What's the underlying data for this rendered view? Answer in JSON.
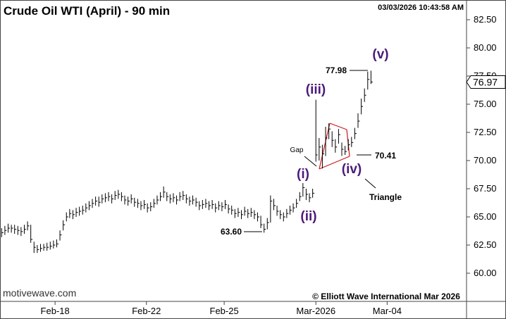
{
  "chart_data": {
    "type": "ohlc",
    "title": "Crude Oil WTI (April) - 90 min",
    "timestamp": "03/03/2026 10:43:58 AM",
    "color": "#000000",
    "high": [
      64.0,
      64.2,
      64.4,
      64.3,
      64.3,
      64.2,
      64.1,
      64.3,
      64.6,
      64.3,
      62.8,
      62.5,
      62.6,
      62.6,
      62.7,
      62.8,
      62.9,
      63.0,
      63.8,
      64.7,
      65.4,
      65.7,
      65.6,
      65.8,
      65.9,
      66.0,
      66.2,
      66.4,
      66.6,
      66.8,
      66.8,
      67.0,
      67.1,
      67.2,
      67.0,
      67.3,
      67.4,
      67.2,
      66.9,
      66.8,
      67.0,
      66.7,
      66.6,
      66.4,
      66.5,
      66.2,
      66.3,
      66.6,
      66.9,
      67.2,
      67.7,
      67.2,
      67.0,
      67.1,
      66.9,
      67.2,
      67.3,
      67.0,
      66.8,
      66.9,
      66.7,
      66.4,
      66.5,
      66.6,
      66.4,
      66.5,
      66.2,
      66.4,
      66.3,
      66.5,
      66.1,
      66.0,
      65.7,
      65.8,
      65.6,
      65.9,
      65.7,
      65.8,
      65.6,
      65.4,
      65.1,
      64.4,
      64.9,
      66.9,
      66.6,
      66.0,
      65.6,
      65.4,
      65.7,
      66.0,
      66.2,
      66.6,
      67.2,
      68.0,
      67.5,
      67.1,
      67.5,
      75.4,
      72.0,
      71.4,
      73.0,
      73.3,
      72.6,
      71.9,
      72.8,
      71.6,
      71.3,
      71.9,
      72.1,
      72.9,
      74.2,
      75.5,
      76.4,
      77.9,
      77.98
    ],
    "low": [
      63.2,
      63.4,
      63.6,
      63.6,
      63.5,
      63.4,
      63.3,
      63.5,
      63.8,
      62.7,
      61.8,
      61.8,
      61.9,
      62.0,
      62.0,
      62.1,
      62.2,
      62.3,
      62.9,
      63.8,
      64.6,
      64.9,
      64.8,
      65.0,
      65.1,
      65.2,
      65.4,
      65.6,
      65.8,
      66.0,
      65.9,
      66.2,
      66.3,
      66.4,
      66.2,
      66.5,
      66.6,
      66.4,
      66.1,
      66.0,
      66.2,
      65.9,
      65.8,
      65.6,
      65.7,
      65.4,
      65.5,
      65.8,
      66.1,
      66.4,
      66.7,
      66.4,
      66.2,
      66.3,
      66.1,
      66.4,
      66.5,
      66.2,
      66.0,
      66.1,
      65.9,
      65.6,
      65.7,
      65.8,
      65.6,
      65.7,
      65.4,
      65.6,
      65.5,
      65.7,
      65.3,
      65.2,
      64.9,
      65.0,
      64.8,
      65.1,
      64.9,
      65.0,
      64.8,
      64.6,
      64.0,
      63.6,
      63.9,
      64.5,
      65.6,
      65.1,
      64.8,
      64.6,
      64.9,
      65.2,
      65.4,
      65.8,
      66.4,
      66.8,
      66.5,
      66.3,
      66.7,
      69.9,
      70.0,
      69.3,
      70.4,
      71.9,
      71.2,
      70.7,
      71.5,
      70.41,
      70.5,
      70.9,
      71.2,
      71.9,
      72.9,
      74.1,
      75.2,
      76.3,
      76.8
    ],
    "close": [
      63.6,
      63.8,
      64.0,
      64.0,
      63.9,
      63.8,
      63.7,
      63.9,
      64.2,
      63.0,
      62.3,
      62.1,
      62.2,
      62.3,
      62.3,
      62.4,
      62.5,
      62.6,
      63.4,
      64.3,
      65.0,
      65.3,
      65.2,
      65.4,
      65.5,
      65.6,
      65.8,
      66.0,
      66.2,
      66.4,
      66.3,
      66.6,
      66.7,
      66.8,
      66.6,
      66.9,
      67.0,
      66.8,
      66.5,
      66.4,
      66.6,
      66.3,
      66.2,
      66.0,
      66.1,
      65.8,
      65.9,
      66.2,
      66.5,
      66.8,
      67.2,
      66.8,
      66.6,
      66.7,
      66.5,
      66.8,
      66.9,
      66.6,
      66.4,
      66.5,
      66.3,
      66.0,
      66.1,
      66.2,
      66.0,
      66.1,
      65.8,
      66.0,
      65.9,
      66.1,
      65.7,
      65.6,
      65.3,
      65.4,
      65.2,
      65.5,
      65.3,
      65.4,
      65.2,
      65.0,
      64.3,
      63.9,
      64.5,
      66.4,
      66.0,
      65.5,
      65.2,
      65.0,
      65.3,
      65.6,
      65.8,
      66.2,
      66.8,
      67.6,
      67.0,
      66.7,
      67.1,
      70.5,
      71.2,
      70.6,
      72.0,
      72.8,
      71.8,
      71.2,
      72.3,
      71.0,
      70.8,
      71.4,
      71.6,
      72.4,
      73.5,
      74.8,
      75.8,
      77.2,
      76.97
    ],
    "last_price": 76.97,
    "xlim": [
      -0.5,
      143.5
    ],
    "xticks": [
      {
        "value": 16.5,
        "label": "Feb-18"
      },
      {
        "value": 44.7,
        "label": "Feb-22"
      },
      {
        "value": 68.7,
        "label": "Feb-25"
      },
      {
        "value": 97,
        "label": "Mar-2026"
      },
      {
        "value": 119,
        "label": "Mar-04"
      }
    ],
    "ylim": [
      57.5,
      84.25
    ],
    "yticks": [
      {
        "value": 60,
        "label": "60.00"
      },
      {
        "value": 62.5,
        "label": "62.50"
      },
      {
        "value": 65,
        "label": "65.00"
      },
      {
        "value": 67.5,
        "label": "67.50"
      },
      {
        "value": 70,
        "label": "70.00"
      },
      {
        "value": 72.5,
        "label": "72.50"
      },
      {
        "value": 75,
        "label": "75.00"
      },
      {
        "value": 77.5,
        "label": "77.50"
      },
      {
        "value": 80,
        "label": "80.00"
      },
      {
        "value": 82.5,
        "label": "82.50"
      }
    ],
    "annotations": [
      "63.60",
      "77.98",
      "70.41",
      "(i)",
      "(ii)",
      "(iii)",
      "(iv)",
      "(v)",
      "Gap",
      "Triangle"
    ],
    "watermark": "motivewave.com",
    "copyright": "© Elliott Wave International Mar 2026"
  }
}
